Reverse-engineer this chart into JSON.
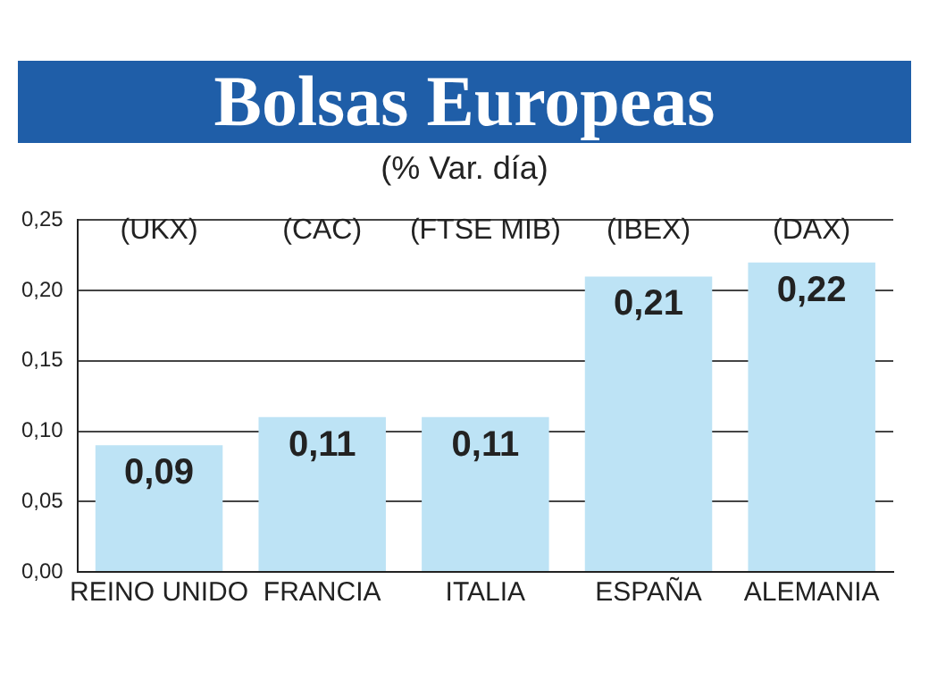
{
  "chart_data": {
    "type": "bar",
    "title": "Bolsas Europeas",
    "subtitle": "(% Var. día)",
    "categories": [
      "REINO UNIDO",
      "FRANCIA",
      "ITALIA",
      "ESPAÑA",
      "ALEMANIA"
    ],
    "values": [
      0.09,
      0.11,
      0.11,
      0.21,
      0.22
    ],
    "value_labels": [
      "0,09",
      "0,11",
      "0,11",
      "0,21",
      "0,22"
    ],
    "color": "#bde3f5",
    "ylim": [
      0,
      0.25
    ],
    "yticks": [
      {
        "value": 0,
        "label": "0,00"
      },
      {
        "value": 0.05,
        "label": "0,05"
      },
      {
        "value": 0.1,
        "label": "0,10"
      },
      {
        "value": 0.15,
        "label": "0,15"
      },
      {
        "value": 0.2,
        "label": "0,20"
      },
      {
        "value": 0.25,
        "label": "0,25"
      }
    ],
    "grid": "y",
    "annotations": [
      "(UKX)",
      "(CAC)",
      "(FTSE MIB)",
      "(IBEX)",
      "(DAX)"
    ]
  }
}
